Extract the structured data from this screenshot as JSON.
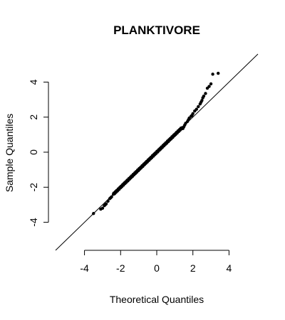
{
  "chart_data": {
    "type": "scatter",
    "title": "PLANKTIVORE",
    "xlabel": "Theoretical Quantiles",
    "ylabel": "Sample Quantiles",
    "xlim": [
      -5.6,
      5.6
    ],
    "ylim": [
      -5.6,
      5.6
    ],
    "x_ticks": [
      -4,
      -2,
      0,
      2,
      4
    ],
    "y_ticks": [
      -4,
      -2,
      0,
      2,
      4
    ],
    "x_tick_labels": [
      "-4",
      "-2",
      "0",
      "2",
      "4"
    ],
    "y_tick_labels": [
      "-4",
      "-2",
      "0",
      "2",
      "4"
    ],
    "reference_line": {
      "intercept": 0.0,
      "slope": 1.0
    },
    "bulk_quantile_range": [
      -2.4,
      1.4
    ],
    "tail_points": [
      [
        -3.5,
        -3.5
      ],
      [
        -3.1,
        -3.25
      ],
      [
        -3.0,
        -3.2
      ],
      [
        -2.9,
        -3.05
      ],
      [
        -2.85,
        -3.0
      ],
      [
        -2.8,
        -2.95
      ],
      [
        -2.7,
        -2.8
      ],
      [
        -2.6,
        -2.65
      ],
      [
        -2.55,
        -2.6
      ],
      [
        -2.5,
        -2.55
      ],
      [
        1.45,
        1.35
      ],
      [
        1.5,
        1.45
      ],
      [
        1.55,
        1.55
      ],
      [
        1.6,
        1.65
      ],
      [
        1.7,
        1.75
      ],
      [
        1.75,
        1.85
      ],
      [
        1.8,
        1.95
      ],
      [
        1.9,
        2.05
      ],
      [
        1.95,
        2.1
      ],
      [
        2.0,
        2.2
      ],
      [
        2.1,
        2.35
      ],
      [
        2.2,
        2.45
      ],
      [
        2.3,
        2.6
      ],
      [
        2.4,
        2.75
      ],
      [
        2.45,
        2.85
      ],
      [
        2.5,
        2.95
      ],
      [
        2.55,
        3.1
      ],
      [
        2.6,
        3.2
      ],
      [
        2.7,
        3.35
      ],
      [
        2.8,
        3.65
      ],
      [
        2.9,
        3.75
      ],
      [
        3.0,
        3.9
      ],
      [
        3.1,
        4.45
      ],
      [
        3.4,
        4.5
      ]
    ],
    "grid": false,
    "legend": "none"
  }
}
